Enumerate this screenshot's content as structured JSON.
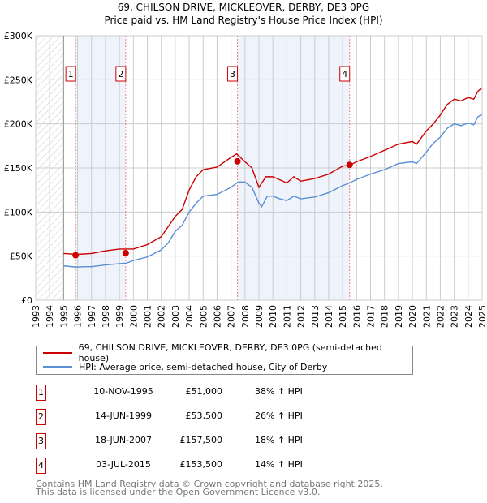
{
  "chart_data": {
    "type": "line",
    "title": "69, CHILSON DRIVE, MICKLEOVER, DERBY, DE3 0PG",
    "subtitle": "Price paid vs. HM Land Registry's House Price Index (HPI)",
    "xlim": [
      1993,
      2025
    ],
    "ylim": [
      0,
      300000
    ],
    "y_ticks": [
      {
        "v": 0,
        "label": "£0"
      },
      {
        "v": 50000,
        "label": "£50K"
      },
      {
        "v": 100000,
        "label": "£100K"
      },
      {
        "v": 150000,
        "label": "£150K"
      },
      {
        "v": 200000,
        "label": "£200K"
      },
      {
        "v": 250000,
        "label": "£250K"
      },
      {
        "v": 300000,
        "label": "£300K"
      }
    ],
    "x_ticks": [
      "1993",
      "1994",
      "1995",
      "1996",
      "1997",
      "1998",
      "1999",
      "2000",
      "2001",
      "2002",
      "2003",
      "2004",
      "2005",
      "2006",
      "2007",
      "2008",
      "2009",
      "2010",
      "2011",
      "2012",
      "2013",
      "2014",
      "2015",
      "2016",
      "2017",
      "2018",
      "2019",
      "2020",
      "2021",
      "2022",
      "2023",
      "2024",
      "2025"
    ],
    "grid": true,
    "hatched_before": 1995,
    "shaded_ranges": [
      [
        1995.86,
        1999.45
      ],
      [
        2007.46,
        2015.5
      ]
    ],
    "series": [
      {
        "name": "69, CHILSON DRIVE, MICKLEOVER, DERBY, DE3 0PG (semi-detached house)",
        "color": "#cc0000",
        "x": [
          1995,
          1996,
          1997,
          1998,
          1999,
          2000,
          2001,
          2002,
          2003,
          2003.5,
          2004,
          2004.5,
          2005,
          2006,
          2007,
          2007.4,
          2008,
          2008.5,
          2009,
          2009.5,
          2010,
          2011,
          2011.5,
          2012,
          2013,
          2014,
          2015,
          2015.5,
          2016,
          2017,
          2018,
          2019,
          2020,
          2020.3,
          2021,
          2021.5,
          2022,
          2022.5,
          2023,
          2023.5,
          2024,
          2024.4,
          2024.7,
          2025
        ],
        "y": [
          53000,
          52000,
          53000,
          56000,
          58000,
          58000,
          63000,
          72000,
          95000,
          103000,
          125000,
          140000,
          148000,
          151000,
          162000,
          166000,
          157000,
          150000,
          128000,
          140000,
          140000,
          133000,
          140000,
          135000,
          138000,
          143000,
          152000,
          153000,
          157000,
          163000,
          170000,
          177000,
          180000,
          177000,
          192000,
          200000,
          210000,
          222000,
          228000,
          226000,
          230000,
          228000,
          237000,
          241000
        ]
      },
      {
        "name": "HPI: Average price, semi-detached house, City of Derby",
        "color": "#5b8fd4",
        "x": [
          1995,
          1995.9,
          1996.5,
          1997,
          1998,
          1999,
          1999.5,
          2000,
          2001,
          2002,
          2002.5,
          2003,
          2003.5,
          2004,
          2004.5,
          2005,
          2006,
          2007,
          2007.5,
          2008,
          2008.5,
          2009,
          2009.2,
          2009.6,
          2010,
          2010.5,
          2011,
          2011.5,
          2012,
          2013,
          2014,
          2015,
          2015.5,
          2016,
          2017,
          2018,
          2019,
          2020,
          2020.3,
          2021,
          2021.5,
          2022,
          2022.5,
          2023,
          2023.5,
          2024,
          2024.4,
          2024.7,
          2025
        ],
        "y": [
          39000,
          37500,
          38000,
          38000,
          40000,
          41500,
          42000,
          45000,
          49000,
          57000,
          65000,
          78000,
          85000,
          100000,
          110000,
          118000,
          120000,
          128000,
          134000,
          134000,
          128000,
          110000,
          106000,
          118000,
          118000,
          115000,
          113000,
          118000,
          115000,
          117000,
          122000,
          130000,
          133000,
          137000,
          143000,
          148000,
          155000,
          157000,
          155000,
          168000,
          178000,
          185000,
          195000,
          200000,
          198000,
          201000,
          199000,
          208000,
          211000
        ]
      }
    ],
    "sales": [
      {
        "n": "1",
        "x": 1995.86,
        "y": 51000,
        "date": "10-NOV-1995",
        "price": "£51,000",
        "hpi": "38% ↑ HPI"
      },
      {
        "n": "2",
        "x": 1999.45,
        "y": 53500,
        "date": "14-JUN-1999",
        "price": "£53,500",
        "hpi": "26% ↑ HPI"
      },
      {
        "n": "3",
        "x": 2007.46,
        "y": 157500,
        "date": "18-JUN-2007",
        "price": "£157,500",
        "hpi": "18% ↑ HPI"
      },
      {
        "n": "4",
        "x": 2015.5,
        "y": 153500,
        "date": "03-JUL-2015",
        "price": "£153,500",
        "hpi": "14% ↑ HPI"
      }
    ]
  },
  "footer": {
    "line1": "Contains HM Land Registry data © Crown copyright and database right 2025.",
    "line2": "This data is licensed under the Open Government Licence v3.0."
  }
}
